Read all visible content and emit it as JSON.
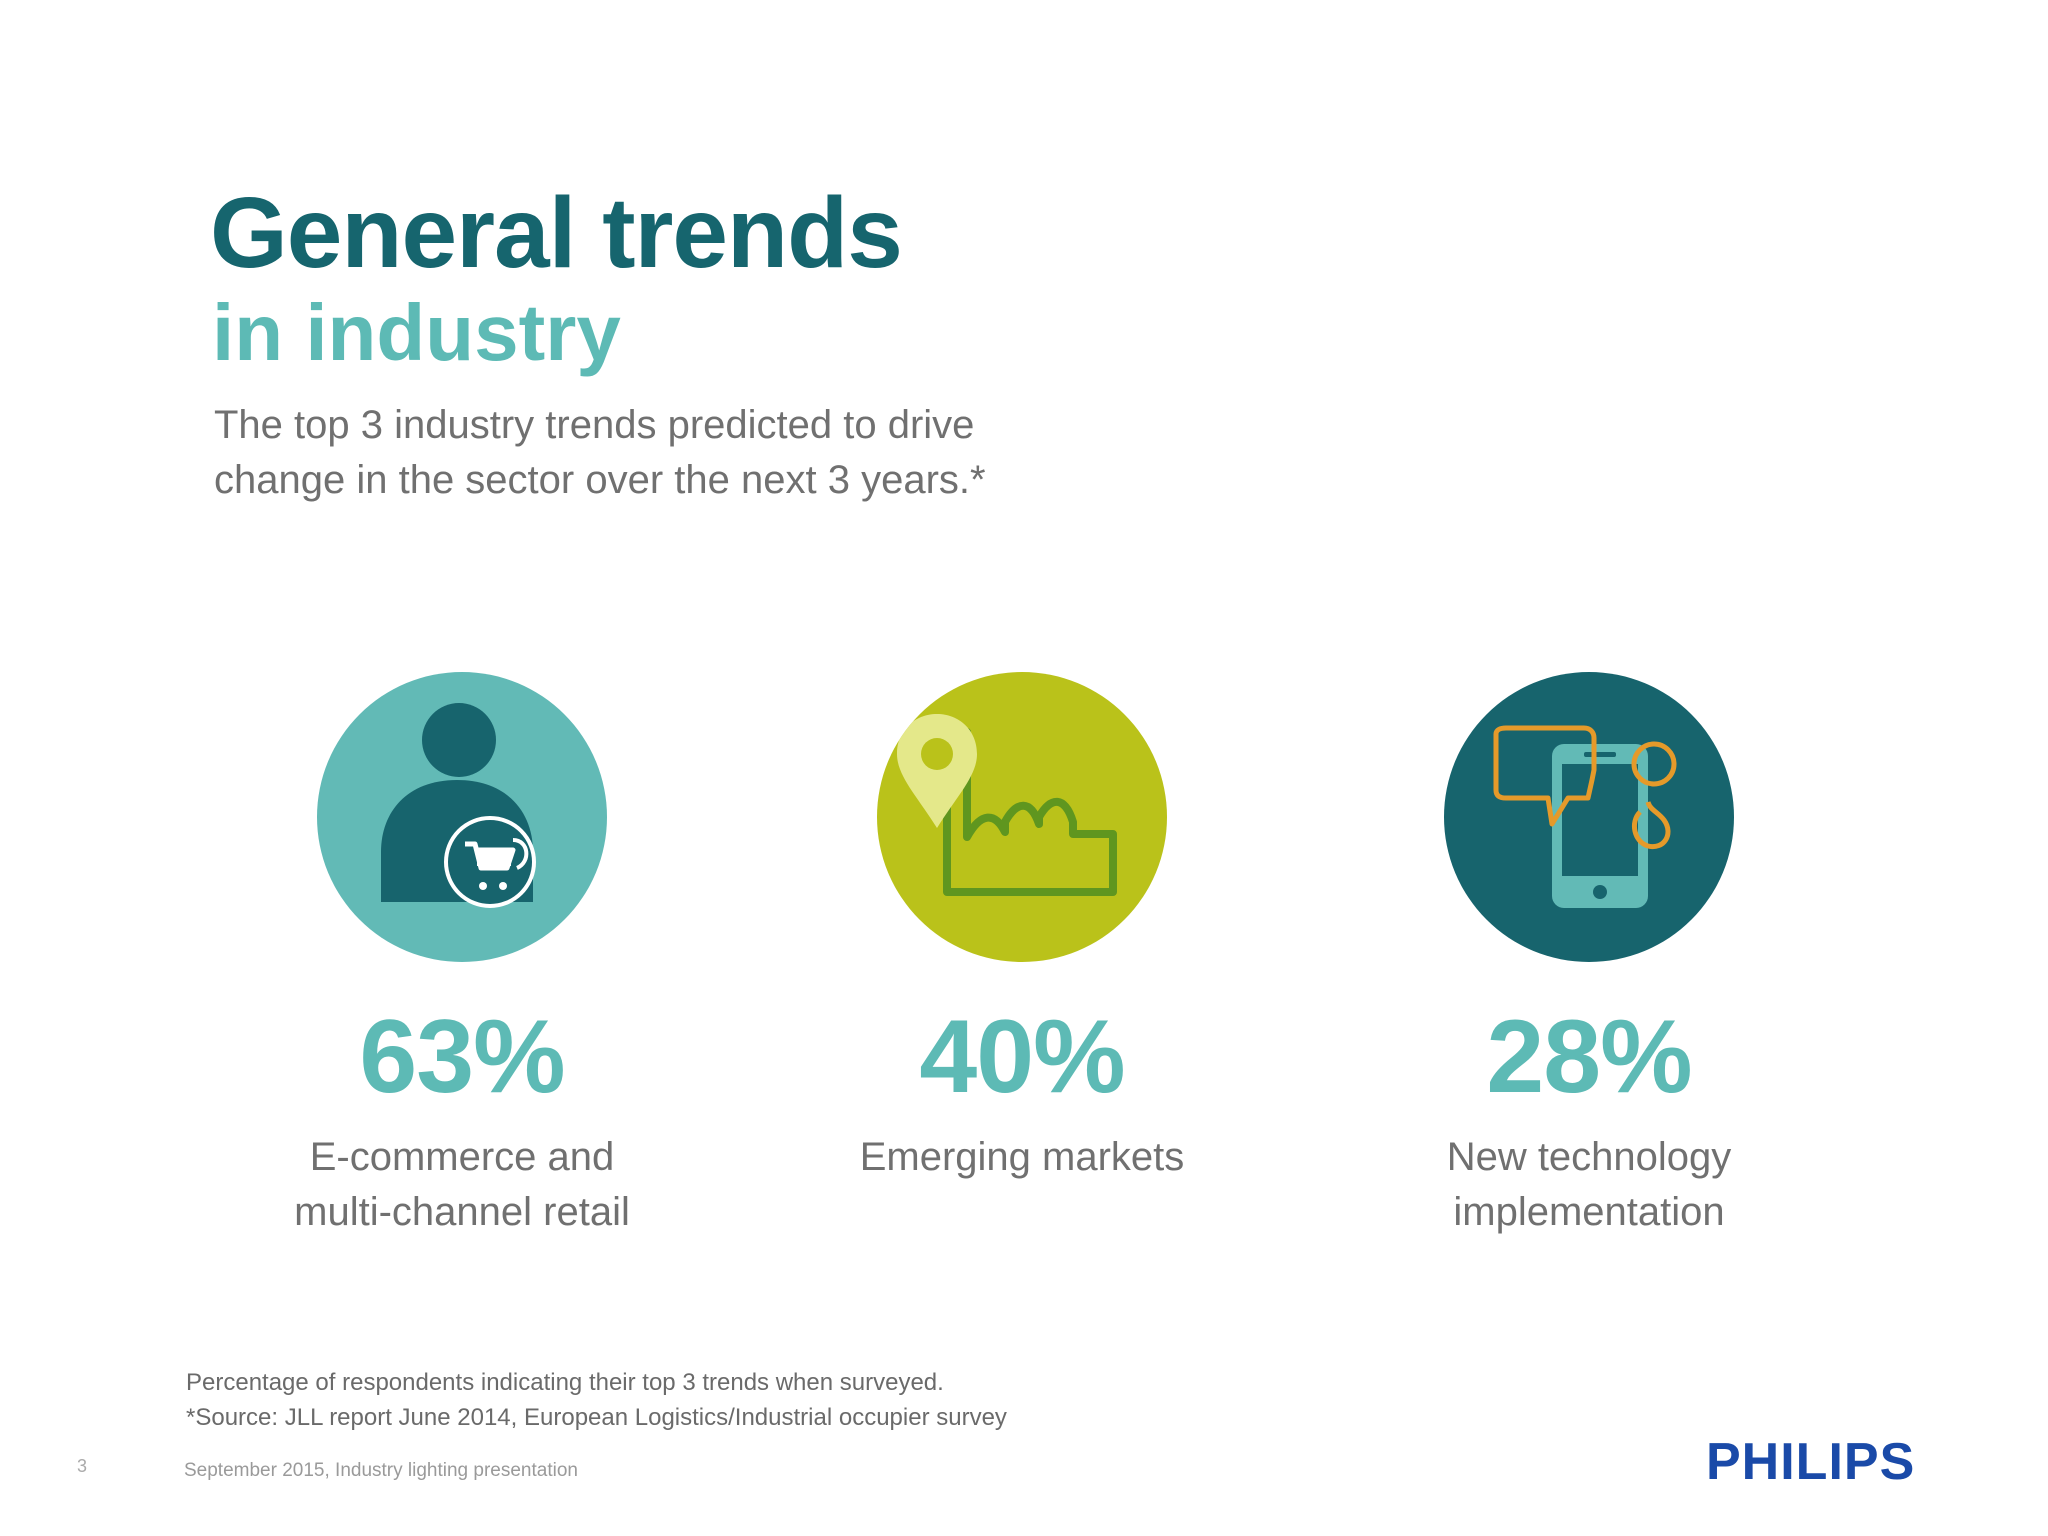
{
  "header": {
    "title": "General trends",
    "subtitle": "in industry",
    "intro_line1": "The top 3 industry trends predicted to drive",
    "intro_line2": "change in the sector over the next 3 years.*"
  },
  "trends": [
    {
      "percent": "63%",
      "label_line1": "E-commerce and",
      "label_line2": "multi-channel retail",
      "icon": "shopper-cart-icon",
      "color": "#62bab6"
    },
    {
      "percent": "40%",
      "label_line1": "Emerging markets",
      "label_line2": "",
      "icon": "factory-location-icon",
      "color": "#bac21a"
    },
    {
      "percent": "28%",
      "label_line1": "New technology",
      "label_line2": "implementation",
      "icon": "smartphone-chat-icon",
      "color": "#17646d"
    }
  ],
  "footnote": {
    "line1": "Percentage of respondents indicating their top 3 trends when surveyed.",
    "line2": "*Source:  JLL report June 2014, European Logistics/Industrial occupier survey"
  },
  "footer": {
    "page_number": "3",
    "text": "September 2015, Industry lighting presentation",
    "logo": "PHILIPS"
  },
  "colors": {
    "title": "#16656e",
    "accent": "#5dbab5",
    "body_text": "#707070",
    "brand": "#1a4aa8"
  }
}
